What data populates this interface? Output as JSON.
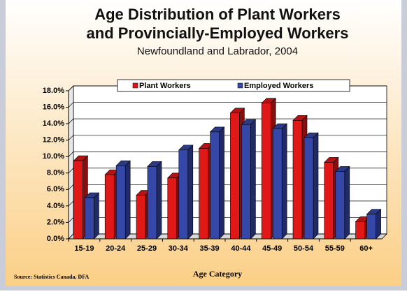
{
  "chart_data": {
    "type": "bar",
    "title": [
      "Age Distribution of Plant Workers",
      "and Provincially-Employed Workers"
    ],
    "subtitle": "Newfoundland and Labrador, 2004",
    "x_label": "Age Category",
    "source": "Source: Statistics Canada, DFA",
    "categories": [
      "15-19",
      "20-24",
      "25-29",
      "30-34",
      "35-39",
      "40-44",
      "45-49",
      "50-54",
      "55-59",
      "60+"
    ],
    "series": [
      {
        "name": "Plant Workers",
        "color": "#e01818",
        "values": [
          9.5,
          7.8,
          5.3,
          7.4,
          11.0,
          15.3,
          16.5,
          14.4,
          9.3,
          2.1
        ]
      },
      {
        "name": "Employed Workers",
        "color": "#3548a8",
        "values": [
          5.0,
          8.9,
          8.8,
          10.8,
          13.0,
          13.9,
          13.4,
          12.3,
          8.2,
          3.0
        ]
      }
    ],
    "ylim": [
      0,
      18
    ],
    "yticks": [
      {
        "value": 0,
        "label": "0.0%"
      },
      {
        "value": 2,
        "label": "2.0%"
      },
      {
        "value": 4,
        "label": "4.0%"
      },
      {
        "value": 6,
        "label": "6.0%"
      },
      {
        "value": 8,
        "label": "8.0%"
      },
      {
        "value": 10,
        "label": "10.0%"
      },
      {
        "value": 12,
        "label": "12.0%"
      },
      {
        "value": 14,
        "label": "14.0%"
      },
      {
        "value": 16,
        "label": "16.0%"
      },
      {
        "value": 18,
        "label": "18.0%"
      }
    ],
    "grid": true,
    "legend": "top"
  }
}
